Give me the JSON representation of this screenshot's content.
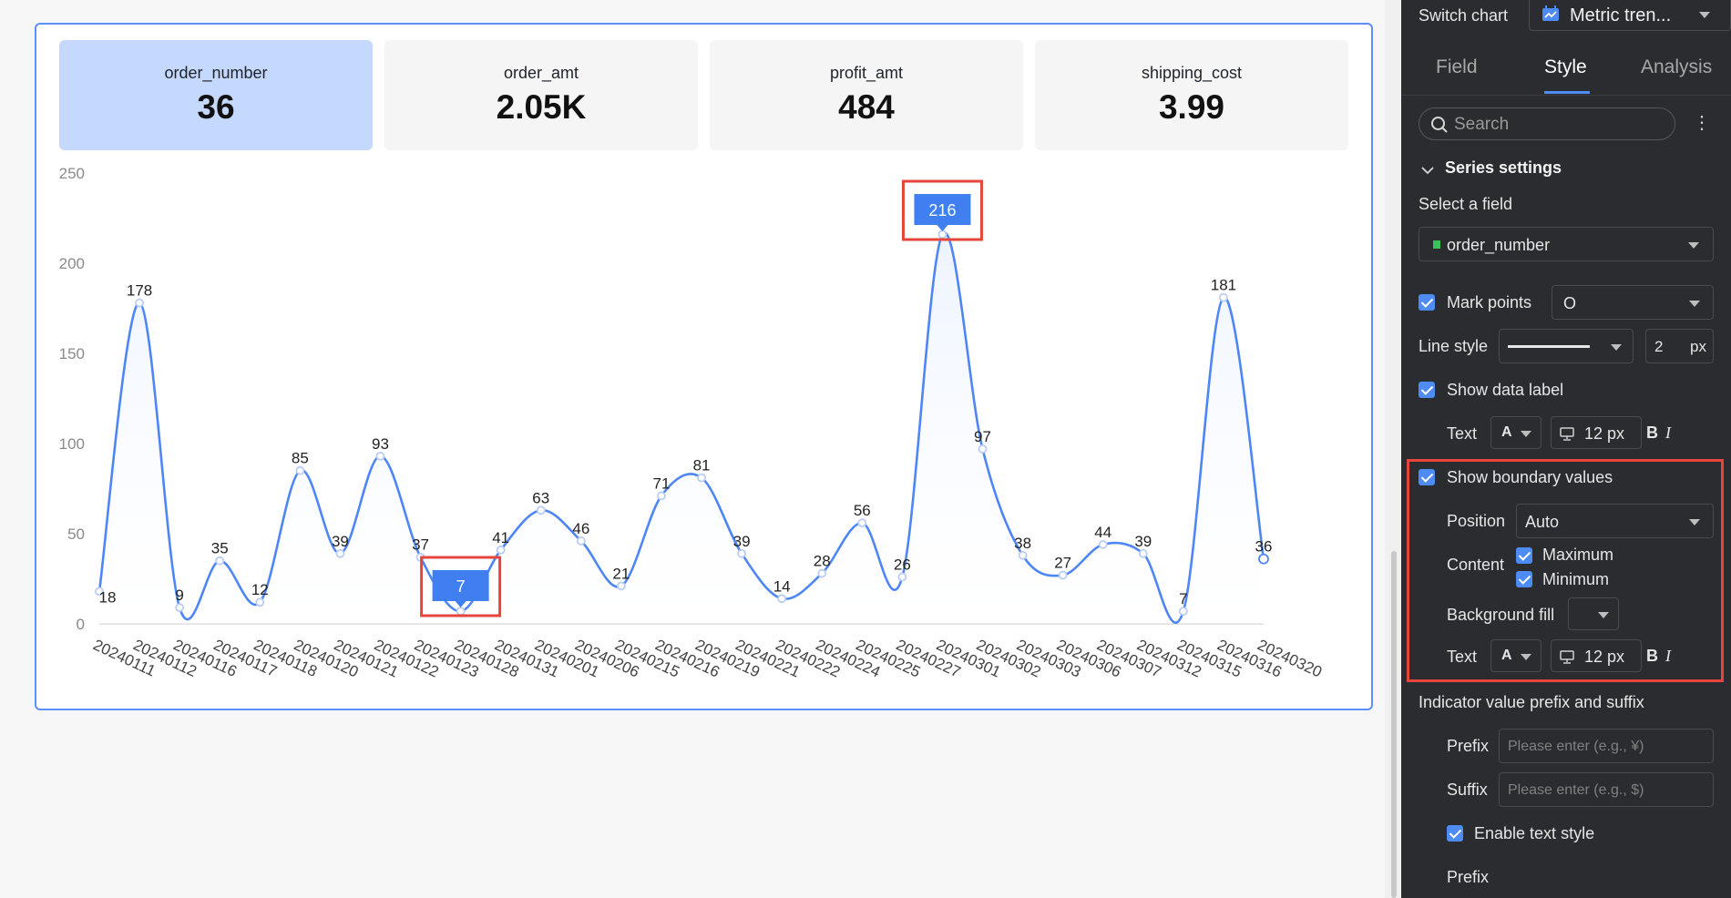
{
  "kpis": [
    {
      "name": "order_number",
      "value": "36"
    },
    {
      "name": "order_amt",
      "value": "2.05K"
    },
    {
      "name": "profit_amt",
      "value": "484"
    },
    {
      "name": "shipping_cost",
      "value": "3.99"
    }
  ],
  "chart_data": {
    "type": "area",
    "x": [
      "20240111",
      "20240112",
      "20240116",
      "20240117",
      "20240118",
      "20240120",
      "20240121",
      "20240122",
      "20240123",
      "20240128",
      "20240131",
      "20240201",
      "20240206",
      "20240215",
      "20240216",
      "20240219",
      "20240221",
      "20240222",
      "20240224",
      "20240225",
      "20240227",
      "20240301",
      "20240302",
      "20240303",
      "20240306",
      "20240307",
      "20240312",
      "20240315",
      "20240316",
      "20240320"
    ],
    "series": [
      {
        "name": "order_number",
        "values": [
          18,
          178,
          9,
          35,
          12,
          85,
          39,
          93,
          37,
          7,
          41,
          63,
          46,
          21,
          71,
          81,
          39,
          14,
          28,
          56,
          26,
          216,
          97,
          38,
          27,
          44,
          39,
          7,
          181,
          36
        ]
      }
    ],
    "y_ticks": [
      "0",
      "50",
      "100",
      "150",
      "200",
      "250"
    ],
    "ylim": [
      0,
      250
    ],
    "grid": false,
    "max_label": "216",
    "min_label": "7",
    "colors": {
      "line": "#4e86f5",
      "fill": "#edf3ff",
      "boundary_bg": "#3f7ff0"
    }
  },
  "panel": {
    "switch_chart_label": "Switch chart",
    "chart_type": "Metric tren...",
    "tabs": [
      "Field",
      "Style",
      "Analysis"
    ],
    "search_placeholder": "Search",
    "more_icon": "⋮",
    "series_settings": "Series settings",
    "select_field_label": "Select a field",
    "selected_field": "order_number",
    "mark_points_label": "Mark points",
    "mark_shape": "O",
    "line_style_label": "Line style",
    "line_width": "2",
    "line_unit": "px",
    "show_data_label": "Show data label",
    "text_label": "Text",
    "font_a": "A",
    "font_size": "12 px",
    "bold": "B",
    "italic": "I",
    "show_boundary": "Show boundary values",
    "position_label": "Position",
    "position_value": "Auto",
    "content_label": "Content",
    "maximum": "Maximum",
    "minimum": "Minimum",
    "background_fill": "Background fill",
    "boundary_text_label": "Text",
    "prefix_suffix_title": "Indicator value prefix and suffix",
    "prefix_label": "Prefix",
    "prefix_placeholder": "Please enter (e.g., ¥)",
    "suffix_label": "Suffix",
    "suffix_placeholder": "Please enter (e.g., $)",
    "enable_text_style": "Enable text style",
    "prefix_label_2": "Prefix"
  }
}
